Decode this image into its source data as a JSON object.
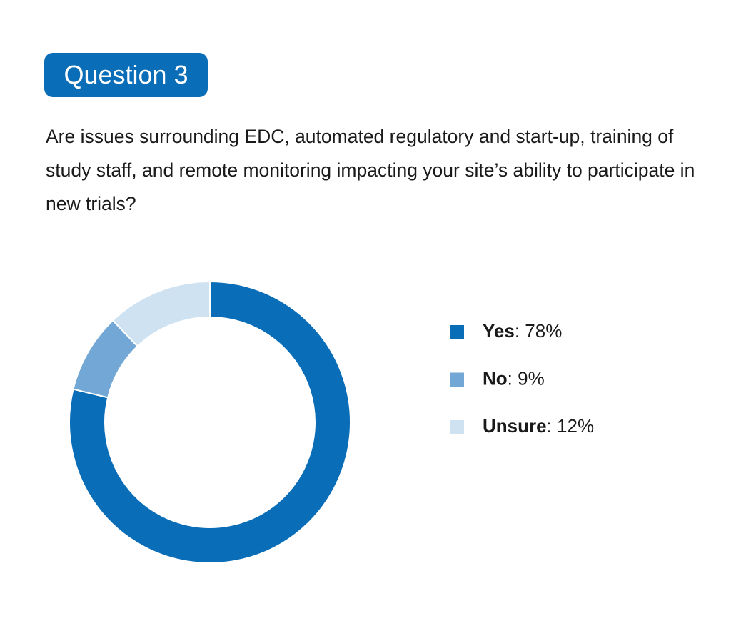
{
  "chart_data": {
    "type": "donut",
    "title": "Question 3",
    "subtitle": "Are issues surrounding EDC, automated regulatory and start-up, training of study staff, and remote monitoring impacting your site’s ability to participate in new trials?",
    "categories": [
      "Yes",
      "No",
      "Unsure"
    ],
    "values": [
      78,
      9,
      12
    ],
    "value_labels": [
      ": 78%",
      ": 9%",
      ": 12%"
    ],
    "colors": [
      "#0a6db7",
      "#72a7d6",
      "#cfe2f1"
    ]
  }
}
